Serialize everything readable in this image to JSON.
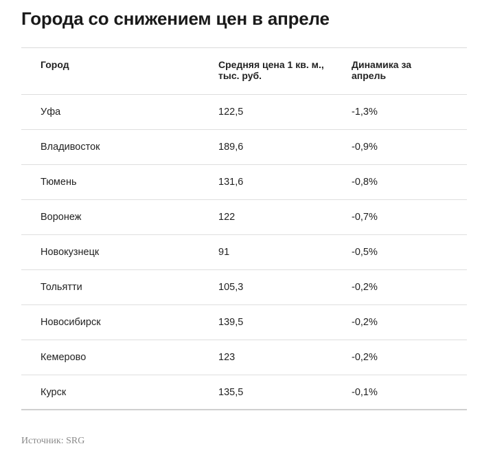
{
  "title": "Города со снижением цен в апреле",
  "source": "Источник: SRG",
  "chart_data": {
    "type": "table",
    "title": "Города со снижением цен в апреле",
    "columns": [
      "Город",
      "Средняя цена 1 кв. м., тыс. руб.",
      "Динамика за апрель"
    ],
    "rows": [
      [
        "Уфа",
        "122,5",
        "-1,3%"
      ],
      [
        "Владивосток",
        "189,6",
        "-0,9%"
      ],
      [
        "Тюмень",
        "131,6",
        "-0,8%"
      ],
      [
        "Воронеж",
        "122",
        "-0,7%"
      ],
      [
        "Новокузнецк",
        "91",
        "-0,5%"
      ],
      [
        "Тольятти",
        "105,3",
        "-0,2%"
      ],
      [
        "Новосибирск",
        "139,5",
        "-0,2%"
      ],
      [
        "Кемерово",
        "123",
        "-0,2%"
      ],
      [
        "Курск",
        "135,5",
        "-0,1%"
      ]
    ],
    "source": "Источник: SRG"
  }
}
